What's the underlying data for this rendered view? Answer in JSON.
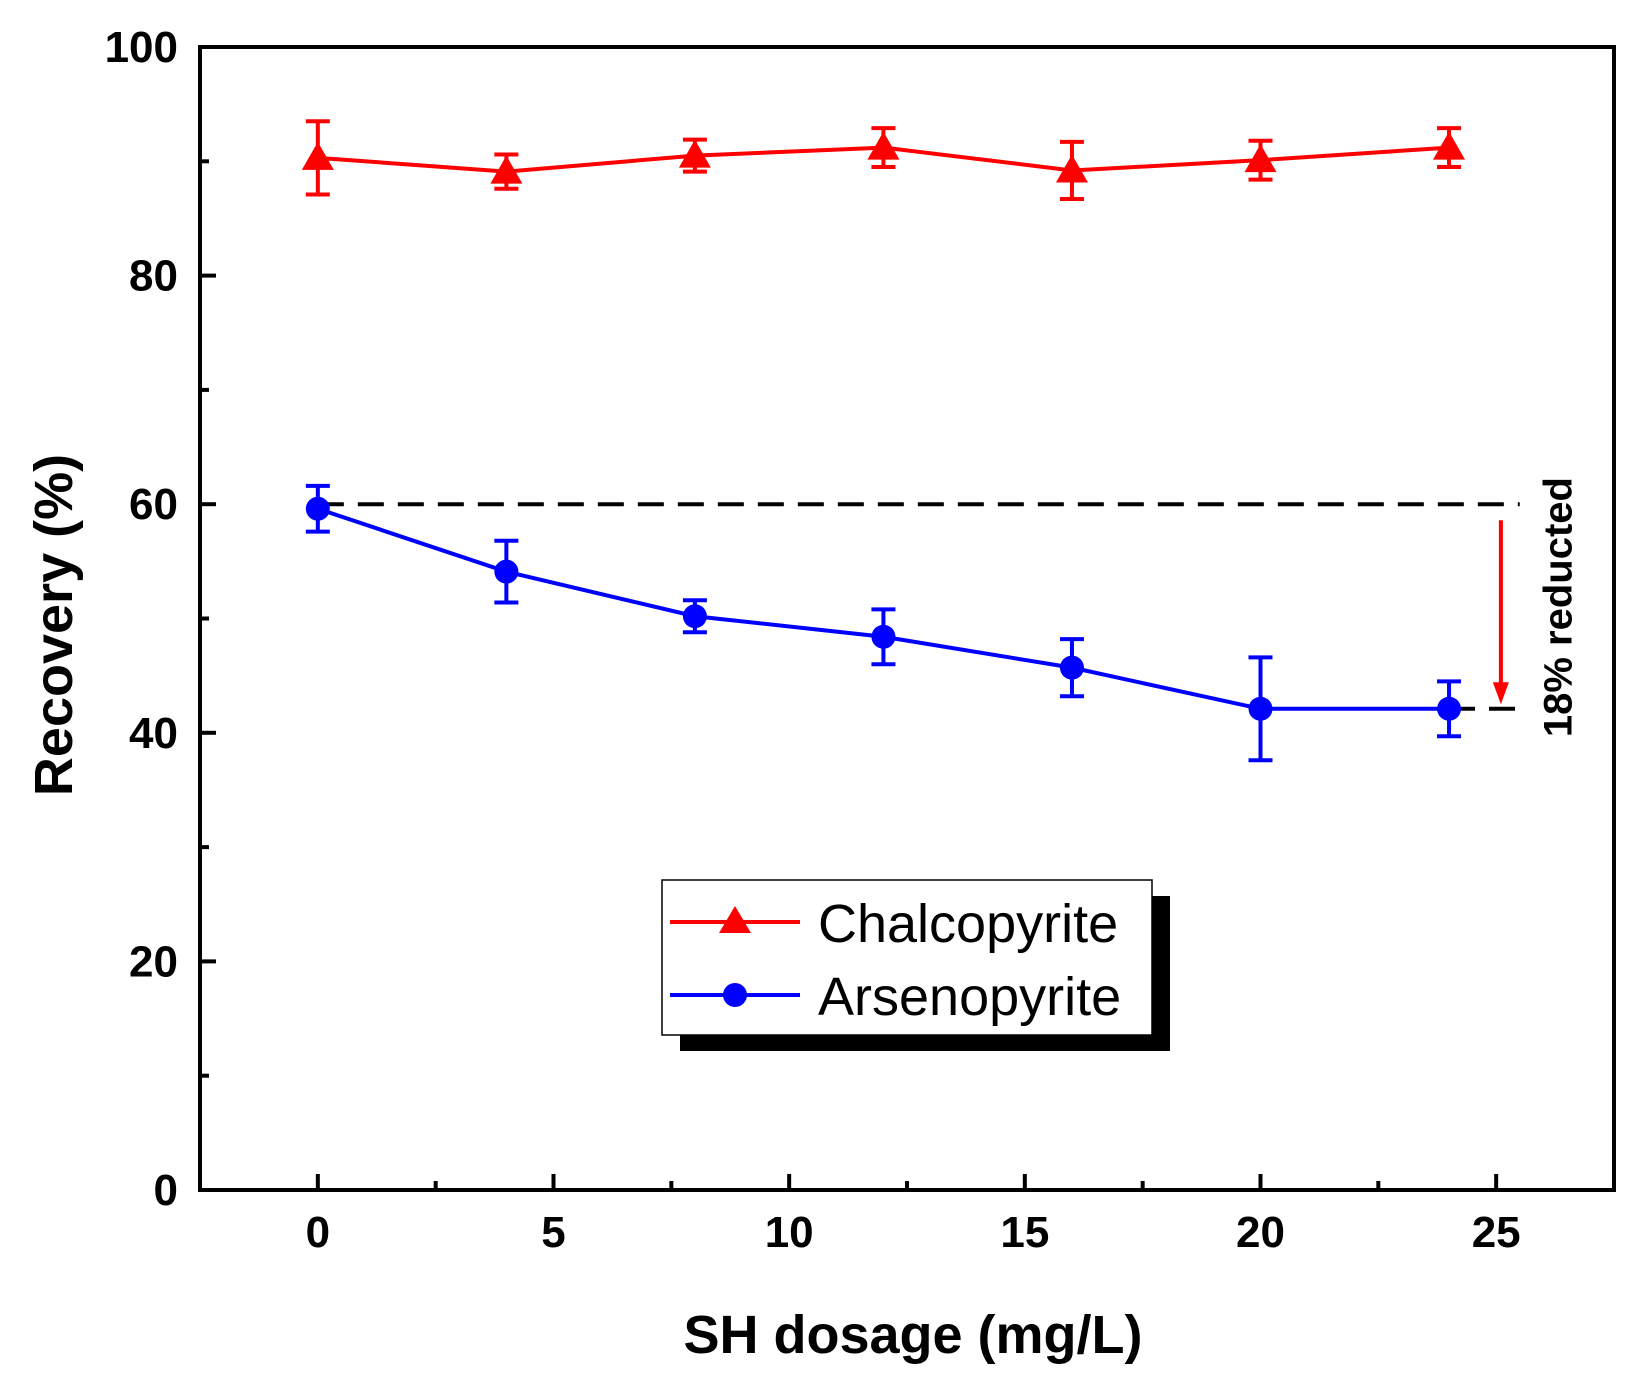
{
  "chart_data": {
    "type": "line",
    "title": "",
    "xlabel": "SH dosage (mg/L)",
    "ylabel": "Recovery (%)",
    "xlim": [
      -2.5,
      27.5
    ],
    "ylim": [
      0,
      100
    ],
    "xticks": [
      0,
      5,
      10,
      15,
      20,
      25
    ],
    "yticks": [
      0,
      20,
      40,
      60,
      80,
      100
    ],
    "x_minor": [
      2.5,
      7.5,
      12.5,
      17.5,
      22.5
    ],
    "y_minor": [
      10,
      30,
      50,
      70,
      90
    ],
    "x_tick_labels": [
      "0",
      "5",
      "10",
      "15",
      "20",
      "25"
    ],
    "y_tick_labels": [
      "0",
      "20",
      "40",
      "60",
      "80",
      "100"
    ],
    "legend_position": "center-bottom",
    "series": [
      {
        "name": "Chalcopyrite",
        "color": "#ff0000",
        "marker": "triangle",
        "x": [
          0,
          4,
          8,
          12,
          16,
          20,
          24
        ],
        "y": [
          90.3,
          89.1,
          90.5,
          91.2,
          89.2,
          90.1,
          91.2
        ],
        "err": [
          3.2,
          1.5,
          1.4,
          1.7,
          2.5,
          1.7,
          1.7
        ]
      },
      {
        "name": "Arsenopyrite",
        "color": "#0000ff",
        "marker": "circle",
        "x": [
          0,
          4,
          8,
          12,
          16,
          20,
          24
        ],
        "y": [
          59.6,
          54.1,
          50.2,
          48.4,
          45.7,
          42.1,
          42.1
        ],
        "err": [
          2.0,
          2.7,
          1.4,
          2.4,
          2.5,
          4.5,
          2.4
        ]
      }
    ],
    "annotations": [
      {
        "type": "hline",
        "y": 60,
        "x_from": 0,
        "x_to": 25.5,
        "style": "dashed"
      },
      {
        "type": "hline",
        "y": 42.1,
        "x_from": 24,
        "x_to": 25.5,
        "style": "dashed"
      },
      {
        "type": "arrow",
        "x": 25.1,
        "y_from": 58.6,
        "y_to": 43.2,
        "color": "#ff0000"
      },
      {
        "type": "text",
        "text": "18% reducted",
        "x": 26.6,
        "y": 51,
        "rotation": -90
      }
    ]
  }
}
